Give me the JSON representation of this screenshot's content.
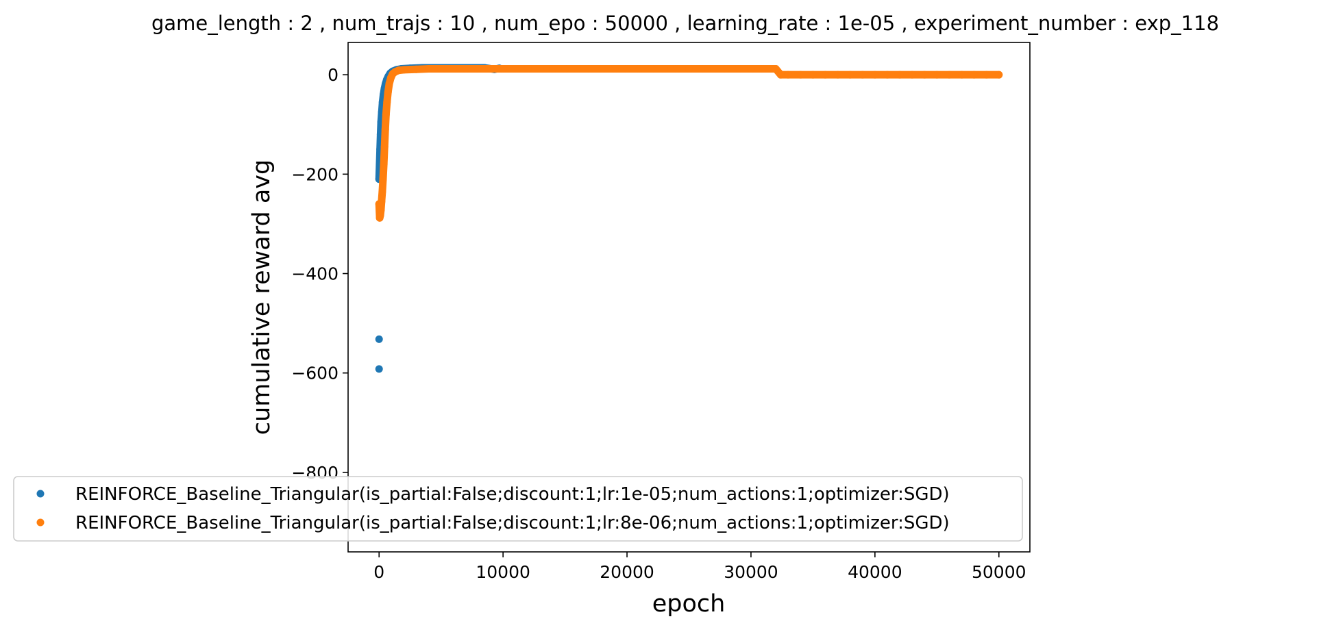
{
  "chart_data": {
    "type": "scatter",
    "title": "game_length : 2 , num_trajs : 10 , num_epo : 50000 , learning_rate : 1e-05 , experiment_number : exp_118",
    "xlabel": "epoch",
    "ylabel": "cumulative reward avg",
    "xlim": [
      -2500,
      52500
    ],
    "ylim": [
      -960,
      65
    ],
    "x_ticks": [
      0,
      10000,
      20000,
      30000,
      40000,
      50000
    ],
    "y_ticks": [
      0,
      -200,
      -400,
      -600,
      -800
    ],
    "grid": false,
    "legend_position": "lower-left",
    "series": [
      {
        "name": "REINFORCE_Baseline_Triangular(is_partial:False;discount:1;lr:1e-05;num_actions:1;optimizer:SGD)",
        "color": "#1f77b4",
        "points": [
          [
            0,
            -592
          ],
          [
            0,
            -532
          ],
          [
            0,
            -210
          ],
          [
            40,
            -180
          ],
          [
            80,
            -150
          ],
          [
            120,
            -120
          ],
          [
            160,
            -95
          ],
          [
            220,
            -75
          ],
          [
            280,
            -55
          ],
          [
            350,
            -40
          ],
          [
            430,
            -28
          ],
          [
            520,
            -18
          ],
          [
            620,
            -10
          ],
          [
            750,
            -3
          ],
          [
            900,
            3
          ],
          [
            1100,
            7
          ],
          [
            1400,
            10
          ],
          [
            1800,
            12
          ],
          [
            2500,
            13
          ],
          [
            3500,
            14
          ],
          [
            4500,
            14
          ],
          [
            5500,
            14
          ],
          [
            6500,
            14
          ],
          [
            7500,
            14
          ],
          [
            8500,
            14
          ],
          [
            9300,
            11
          ],
          [
            9700,
            13
          ]
        ]
      },
      {
        "name": "REINFORCE_Baseline_Triangular(is_partial:False;discount:1;lr:8e-06;num_actions:1;optimizer:SGD)",
        "color": "#ff7f0e",
        "points": [
          [
            0,
            -260
          ],
          [
            50,
            -288
          ],
          [
            100,
            -283
          ],
          [
            150,
            -272
          ],
          [
            200,
            -255
          ],
          [
            260,
            -235
          ],
          [
            320,
            -210
          ],
          [
            380,
            -180
          ],
          [
            440,
            -145
          ],
          [
            500,
            -110
          ],
          [
            560,
            -80
          ],
          [
            640,
            -55
          ],
          [
            720,
            -35
          ],
          [
            820,
            -18
          ],
          [
            950,
            -6
          ],
          [
            1100,
            2
          ],
          [
            1300,
            6
          ],
          [
            1600,
            9
          ],
          [
            2000,
            10
          ],
          [
            3000,
            11
          ],
          [
            4000,
            12
          ],
          [
            5000,
            12
          ],
          [
            6000,
            12
          ],
          [
            7000,
            12
          ],
          [
            8000,
            12
          ],
          [
            9000,
            12
          ],
          [
            10000,
            12
          ],
          [
            11000,
            12
          ],
          [
            12000,
            12
          ],
          [
            13000,
            12
          ],
          [
            14000,
            12
          ],
          [
            15000,
            12
          ],
          [
            16000,
            12
          ],
          [
            17000,
            12
          ],
          [
            18000,
            12
          ],
          [
            19000,
            12
          ],
          [
            20000,
            12
          ],
          [
            21000,
            12
          ],
          [
            22000,
            12
          ],
          [
            23000,
            12
          ],
          [
            24000,
            12
          ],
          [
            25000,
            12
          ],
          [
            26000,
            12
          ],
          [
            27000,
            12
          ],
          [
            28000,
            12
          ],
          [
            29000,
            12
          ],
          [
            30000,
            12
          ],
          [
            31000,
            12
          ],
          [
            32000,
            12
          ],
          [
            32400,
            0
          ],
          [
            33000,
            0
          ],
          [
            34000,
            0
          ],
          [
            35000,
            0
          ],
          [
            36000,
            0
          ],
          [
            37000,
            0
          ],
          [
            38000,
            0
          ],
          [
            39000,
            0
          ],
          [
            40000,
            0
          ],
          [
            41000,
            0
          ],
          [
            42000,
            0
          ],
          [
            43000,
            0
          ],
          [
            44000,
            0
          ],
          [
            45000,
            0
          ],
          [
            46000,
            0
          ],
          [
            47000,
            0
          ],
          [
            48000,
            0
          ],
          [
            49000,
            0
          ],
          [
            50000,
            0
          ]
        ]
      }
    ]
  }
}
